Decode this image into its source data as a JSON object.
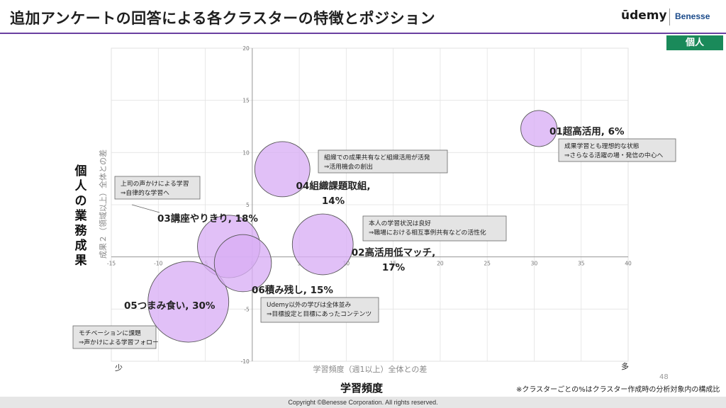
{
  "header": {
    "title": "追加アンケートの回答による各クラスターの特徴とポジション",
    "logo_udemy": "ūdemy",
    "logo_benesse": "Benesse",
    "badge": "個人"
  },
  "colors": {
    "bubble_fill": "#d9aef5",
    "bubble_stroke": "#555555",
    "accent_rule": "#6a3fa0",
    "badge_bg": "#1a8a5a"
  },
  "labels": {
    "y_big": "個人の業務成果",
    "x_big": "学習頻度",
    "x_low": "少",
    "x_high": "多",
    "side_note": "※クラスターごとの%はクラスター作成時の分析対象内の構成比",
    "page_number": "48",
    "footer": "Copyright ©Benesse Corporation. All rights reserved."
  },
  "chart_data": {
    "type": "scatter",
    "variant": "bubble",
    "xlabel": "学習頻度（週1以上）全体との差",
    "ylabel": "成果２（領域以上）全体との差",
    "xlim": [
      -15,
      40
    ],
    "ylim": [
      -10,
      20
    ],
    "x_ticks": [
      -15,
      -10,
      -5,
      0,
      5,
      10,
      15,
      20,
      25,
      30,
      35,
      40
    ],
    "y_ticks": [
      -10,
      -5,
      0,
      5,
      10,
      15,
      20
    ],
    "tick_labels_x": [
      "-15",
      "-10",
      "-5",
      "0",
      "5",
      "10",
      "15",
      "20",
      "25",
      "30",
      "35",
      "40"
    ],
    "tick_labels_y": [
      "-10",
      "-5",
      "0",
      "5",
      "10",
      "15",
      "20"
    ],
    "grid": true,
    "points": [
      {
        "name": "01超高活用, 6%",
        "label_lines": [
          "01超高活用, 6%"
        ],
        "x": 30.5,
        "y": 12.3,
        "share": 6
      },
      {
        "name": "02高活用低マッチ",
        "label_lines": [
          "02高活用低マッチ,",
          "17%"
        ],
        "x": 7.5,
        "y": 1.2,
        "share": 17
      },
      {
        "name": "03講座やりきり",
        "label_lines": [
          "03講座やりきり, 18%"
        ],
        "x": -2.5,
        "y": 1.0,
        "share": 18
      },
      {
        "name": "04組織課題取組",
        "label_lines": [
          "04組織課題取組,",
          "14%"
        ],
        "x": 3.2,
        "y": 8.4,
        "share": 14
      },
      {
        "name": "05つまみ食い",
        "label_lines": [
          "05つまみ食い, 30%"
        ],
        "x": -6.8,
        "y": -4.3,
        "share": 30
      },
      {
        "name": "06積み残し",
        "label_lines": [
          "06積み残し, 15%"
        ],
        "x": -1.0,
        "y": -0.6,
        "share": 15
      }
    ],
    "annotations": [
      {
        "name": "annotation-01",
        "lines": [
          "成果学習とも理想的な状態",
          "⇒さらなる活躍の場・発信の中心へ"
        ]
      },
      {
        "name": "annotation-04",
        "lines": [
          "組織での成果共有など組織活用が活発",
          "⇒活用機会の創出"
        ]
      },
      {
        "name": "annotation-03",
        "lines": [
          "上司の声かけによる学習",
          "⇒自律的な学習へ"
        ]
      },
      {
        "name": "annotation-02",
        "lines": [
          "本人の学習状況は良好",
          "⇒職場における相互事例共有などの活性化"
        ]
      },
      {
        "name": "annotation-06",
        "lines": [
          "Udemy以外の学びは全体並み",
          "⇒目標設定と目標にあったコンテンツ"
        ]
      },
      {
        "name": "annotation-05",
        "lines": [
          "モチベーションに課題",
          "⇒声かけによる学習フォロー"
        ]
      }
    ]
  }
}
